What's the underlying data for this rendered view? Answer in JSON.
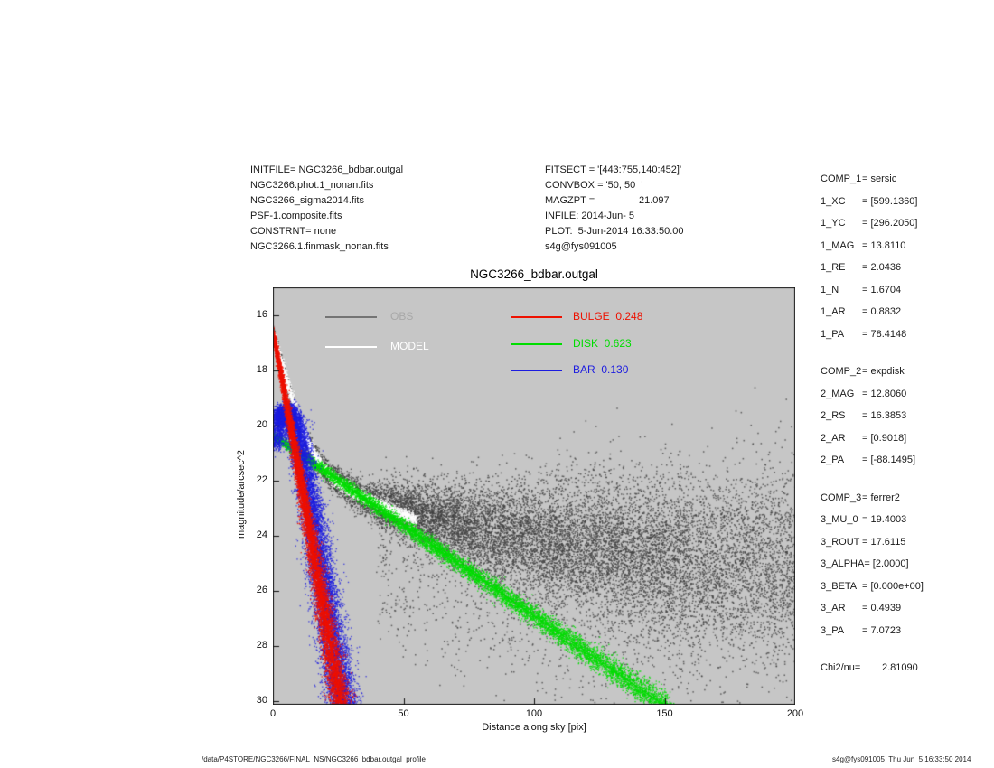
{
  "info_left": {
    "lines": [
      "INITFILE= NGC3266_bdbar.outgal",
      "NGC3266.phot.1_nonan.fits",
      "NGC3266_sigma2014.fits",
      "PSF-1.composite.fits",
      "CONSTRNT= none",
      "NGC3266.1.finmask_nonan.fits"
    ]
  },
  "info_mid": {
    "lines": [
      "FITSECT = '[443:755,140:452]'",
      "CONVBOX = '50, 50  '",
      "MAGZPT =                21.097",
      "INFILE: 2014-Jun- 5",
      "PLOT:  5-Jun-2014 16:33:50.00",
      "s4g@fys091005"
    ]
  },
  "params": {
    "groups": [
      {
        "rows": [
          [
            "COMP_1",
            "= sersic"
          ],
          [
            "1_XC",
            "= [599.1360]"
          ],
          [
            "1_YC",
            "= [296.2050]"
          ],
          [
            "1_MAG",
            "= 13.8110"
          ],
          [
            "1_RE",
            "= 2.0436"
          ],
          [
            "1_N",
            "= 1.6704"
          ],
          [
            "1_AR",
            "= 0.8832"
          ],
          [
            "1_PA",
            "= 78.4148"
          ]
        ]
      },
      {
        "rows": [
          [
            "COMP_2",
            "= expdisk"
          ],
          [
            "2_MAG",
            "= 12.8060"
          ],
          [
            "2_RS",
            "= 16.3853"
          ],
          [
            "2_AR",
            "= [0.9018]"
          ],
          [
            "2_PA",
            "= [-88.1495]"
          ]
        ]
      },
      {
        "rows": [
          [
            "COMP_3",
            "= ferrer2"
          ],
          [
            "3_MU_0",
            "= 19.4003"
          ],
          [
            "3_ROUT",
            "= 17.6115"
          ],
          [
            "3_ALPHA",
            "= [2.0000]"
          ],
          [
            "3_BETA",
            "= [0.000e+00]"
          ],
          [
            "3_AR",
            "= 0.4939"
          ],
          [
            "3_PA",
            "= 7.0723"
          ]
        ]
      }
    ],
    "chi2": {
      "label": "Chi2/nu=",
      "value": "2.81090"
    }
  },
  "footer": {
    "left": "/data/P4STORE/NGC3266/FINAL_NS/NGC3266_bdbar.outgal_profile",
    "right": "s4g@fys091005  Thu Jun  5 16:33:50 2014"
  },
  "chart_data": {
    "type": "scatter",
    "title": "NGC3266_bdbar.outgal",
    "xlabel": "Distance along sky [pix]",
    "ylabel": "magnitude/arcsec^2",
    "xlim": [
      0,
      200
    ],
    "ylim": [
      14.98,
      30.13
    ],
    "y_inverted": true,
    "grid": false,
    "legend_position": "top-inside",
    "background": "#c6c6c6",
    "x_ticks": [
      0,
      50,
      100,
      150,
      200
    ],
    "y_ticks": [
      16,
      18,
      20,
      22,
      24,
      26,
      28,
      30
    ],
    "legend": [
      {
        "label": "OBS",
        "line_color": "#747474",
        "text_color": "#a8a8a8"
      },
      {
        "label": "MODEL",
        "line_color": "#ffffff",
        "text_color": "#ffffff"
      },
      {
        "label": "BULGE  0.248",
        "line_color": "#ee1100",
        "text_color": "#ee1100"
      },
      {
        "label": "DISK  0.623",
        "line_color": "#00dd00",
        "text_color": "#00dd00"
      },
      {
        "label": "BAR  0.130",
        "line_color": "#1c1ce0",
        "text_color": "#1c1ce0"
      }
    ],
    "series": [
      {
        "name": "obs",
        "kind": "scatter-band",
        "color": "#3f3f3f",
        "alpha": 0.78,
        "n": 4200,
        "dot": 1.4,
        "xrange": [
          0,
          40
        ],
        "bias": 1.4,
        "sigma_x": 0.25,
        "sigma_mag_range": [
          0.06,
          0.33
        ],
        "profile": [
          [
            0,
            16.55
          ],
          [
            1,
            16.9
          ],
          [
            2,
            17.25
          ],
          [
            3,
            17.6
          ],
          [
            4,
            17.95
          ],
          [
            5,
            18.3
          ],
          [
            6,
            18.62
          ],
          [
            7,
            18.95
          ],
          [
            8,
            19.25
          ],
          [
            9,
            19.55
          ],
          [
            10,
            19.85
          ],
          [
            11,
            20.1
          ],
          [
            12,
            20.35
          ],
          [
            13,
            20.57
          ],
          [
            14,
            20.77
          ],
          [
            15,
            20.95
          ],
          [
            16,
            21.12
          ],
          [
            17,
            21.27
          ],
          [
            18,
            21.4
          ],
          [
            19,
            21.52
          ],
          [
            20,
            21.63
          ],
          [
            22,
            21.83
          ],
          [
            24,
            22.0
          ],
          [
            26,
            22.14
          ],
          [
            28,
            22.27
          ],
          [
            30,
            22.38
          ],
          [
            33,
            22.52
          ],
          [
            36,
            22.64
          ],
          [
            40,
            22.8
          ]
        ]
      },
      {
        "name": "obs-cloud",
        "kind": "scatter-cloud",
        "color": "#3f3f3f",
        "alpha": 0.78,
        "n": 14000,
        "dot": 1.5,
        "xrange": [
          40,
          200
        ],
        "sigma_x": 0.5,
        "sigma_pts": [
          [
            40,
            0.35
          ],
          [
            60,
            0.6
          ],
          [
            80,
            0.85
          ],
          [
            100,
            1.05
          ],
          [
            120,
            1.25
          ],
          [
            150,
            1.5
          ],
          [
            200,
            1.8
          ]
        ],
        "tail_frac": 0.16,
        "tail_mag": 4.8,
        "up_frac": 0.05,
        "up_mag": 1.3,
        "fade_x": 160,
        "fade_keep": 0.72,
        "profile": [
          [
            40,
            22.85
          ],
          [
            55,
            23.2
          ],
          [
            70,
            23.55
          ],
          [
            85,
            23.85
          ],
          [
            100,
            24.1
          ],
          [
            115,
            24.3
          ],
          [
            130,
            24.5
          ],
          [
            150,
            24.7
          ],
          [
            170,
            24.85
          ],
          [
            200,
            25.0
          ]
        ]
      },
      {
        "name": "model",
        "kind": "scatter-band",
        "color": "#ffffff",
        "alpha": 0.95,
        "n": 4200,
        "dot": 1.3,
        "xrange": [
          0,
          55
        ],
        "bias": 1.4,
        "sigma_x": 0.35,
        "sigma_mag": 0.1,
        "profile": [
          [
            0,
            16.7
          ],
          [
            1,
            17.0
          ],
          [
            2,
            17.3
          ],
          [
            3,
            17.62
          ],
          [
            4,
            17.95
          ],
          [
            5,
            18.27
          ],
          [
            6,
            18.58
          ],
          [
            7,
            18.9
          ],
          [
            8,
            19.2
          ],
          [
            9,
            19.5
          ],
          [
            10,
            19.78
          ],
          [
            11,
            20.04
          ],
          [
            12,
            20.28
          ],
          [
            13,
            20.5
          ],
          [
            14,
            20.7
          ],
          [
            15,
            20.88
          ],
          [
            16,
            21.05
          ],
          [
            17,
            21.2
          ],
          [
            18,
            21.34
          ],
          [
            19,
            21.47
          ],
          [
            20,
            21.59
          ],
          [
            22,
            21.8
          ],
          [
            24,
            21.98
          ],
          [
            26,
            22.12
          ],
          [
            28,
            22.25
          ],
          [
            30,
            22.37
          ],
          [
            33,
            22.52
          ],
          [
            36,
            22.65
          ],
          [
            40,
            22.82
          ],
          [
            44,
            23.0
          ],
          [
            48,
            23.15
          ],
          [
            52,
            23.3
          ],
          [
            55,
            23.42
          ]
        ]
      },
      {
        "name": "disk",
        "kind": "scatter-band",
        "color": "#00dd00",
        "alpha": 0.9,
        "n": 8000,
        "dot": 1.3,
        "xrange": [
          0,
          152
        ],
        "sigma_x": 0.8,
        "sigma_mag_range": [
          0.07,
          0.26
        ],
        "stroke": 1.4,
        "profile": [
          [
            0,
            20.35
          ],
          [
            152,
            30.3
          ]
        ]
      },
      {
        "name": "bar",
        "kind": "scatter-band",
        "color": "#1c1ce0",
        "alpha": 0.85,
        "n": 13000,
        "dot": 1.3,
        "xrange": [
          1,
          28.5
        ],
        "sigma_x_base": 1.8,
        "sigma_x_slope": 0.12,
        "sigma_ref": 19.45,
        "sigma_mag": 0.15,
        "profile": [
          [
            1,
            20.8
          ],
          [
            2,
            20.1
          ],
          [
            3,
            19.7
          ],
          [
            5,
            19.48
          ],
          [
            7,
            19.65
          ],
          [
            9,
            20.15
          ],
          [
            11,
            21.0
          ],
          [
            13,
            22.05
          ],
          [
            15,
            23.15
          ],
          [
            17,
            24.3
          ],
          [
            19,
            25.45
          ],
          [
            21,
            26.6
          ],
          [
            23,
            27.75
          ],
          [
            25,
            28.9
          ],
          [
            27,
            30.0
          ],
          [
            28.5,
            30.8
          ]
        ]
      },
      {
        "name": "bulge",
        "kind": "scatter-band",
        "color": "#ee1100",
        "alpha": 0.9,
        "n": 9000,
        "dot": 1.3,
        "xrange": [
          0,
          27
        ],
        "sigma_x_base": 0.15,
        "sigma_x_slope": 0.14,
        "sigma_ref": 16.6,
        "sigma_mag": 0.12,
        "stroke": 2,
        "profile": [
          [
            0,
            16.6
          ],
          [
            2,
            17.55
          ],
          [
            4,
            18.55
          ],
          [
            6,
            19.6
          ],
          [
            8,
            20.6
          ],
          [
            10,
            21.65
          ],
          [
            12,
            22.7
          ],
          [
            14,
            23.75
          ],
          [
            16,
            24.8
          ],
          [
            18,
            25.9
          ],
          [
            20,
            26.95
          ],
          [
            22,
            28.0
          ],
          [
            24,
            29.05
          ],
          [
            26,
            30.1
          ],
          [
            27,
            30.6
          ]
        ]
      }
    ]
  }
}
